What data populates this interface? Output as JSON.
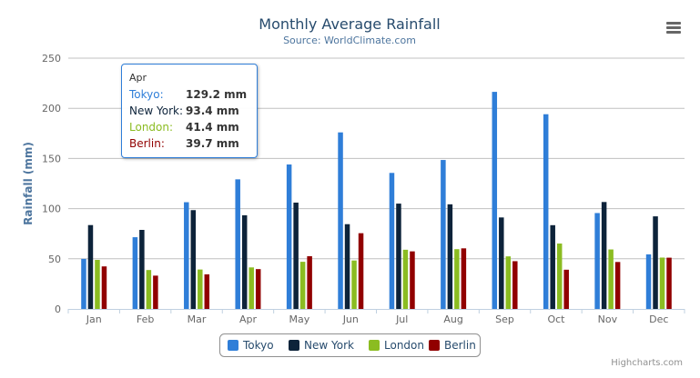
{
  "menu_icon": "hamburger-menu-icon",
  "credits": "Highcharts.com",
  "tooltip": {
    "header": "Apr",
    "rows": [
      {
        "name": "Tokyo:",
        "value": "129.2 mm"
      },
      {
        "name": "New York:",
        "value": "93.4 mm"
      },
      {
        "name": "London:",
        "value": "41.4 mm"
      },
      {
        "name": "Berlin:",
        "value": "39.7 mm"
      }
    ]
  },
  "chart_data": {
    "type": "bar",
    "title": "Monthly Average Rainfall",
    "subtitle": "Source: WorldClimate.com",
    "xlabel": "",
    "ylabel": "Rainfall (mm)",
    "ylim": [
      0,
      250
    ],
    "yticks": [
      0,
      50,
      100,
      150,
      200,
      250
    ],
    "grid": true,
    "legend": "bottom-center",
    "categories": [
      "Jan",
      "Feb",
      "Mar",
      "Apr",
      "May",
      "Jun",
      "Jul",
      "Aug",
      "Sep",
      "Oct",
      "Nov",
      "Dec"
    ],
    "series": [
      {
        "name": "Tokyo",
        "color": "#2f7ed8",
        "values": [
          49.9,
          71.5,
          106.4,
          129.2,
          144.0,
          176.0,
          135.6,
          148.5,
          216.4,
          194.1,
          95.6,
          54.4
        ]
      },
      {
        "name": "New York",
        "color": "#0d233a",
        "values": [
          83.6,
          78.8,
          98.5,
          93.4,
          106.0,
          84.5,
          105.0,
          104.3,
          91.2,
          83.5,
          106.6,
          92.3
        ]
      },
      {
        "name": "London",
        "color": "#8bbc21",
        "values": [
          48.9,
          38.8,
          39.3,
          41.4,
          47.0,
          48.3,
          59.0,
          59.6,
          52.4,
          65.2,
          59.3,
          51.2
        ]
      },
      {
        "name": "Berlin",
        "color": "#910000",
        "values": [
          42.4,
          33.2,
          34.5,
          39.7,
          52.6,
          75.5,
          57.4,
          60.4,
          47.6,
          39.1,
          46.8,
          51.1
        ]
      }
    ]
  }
}
